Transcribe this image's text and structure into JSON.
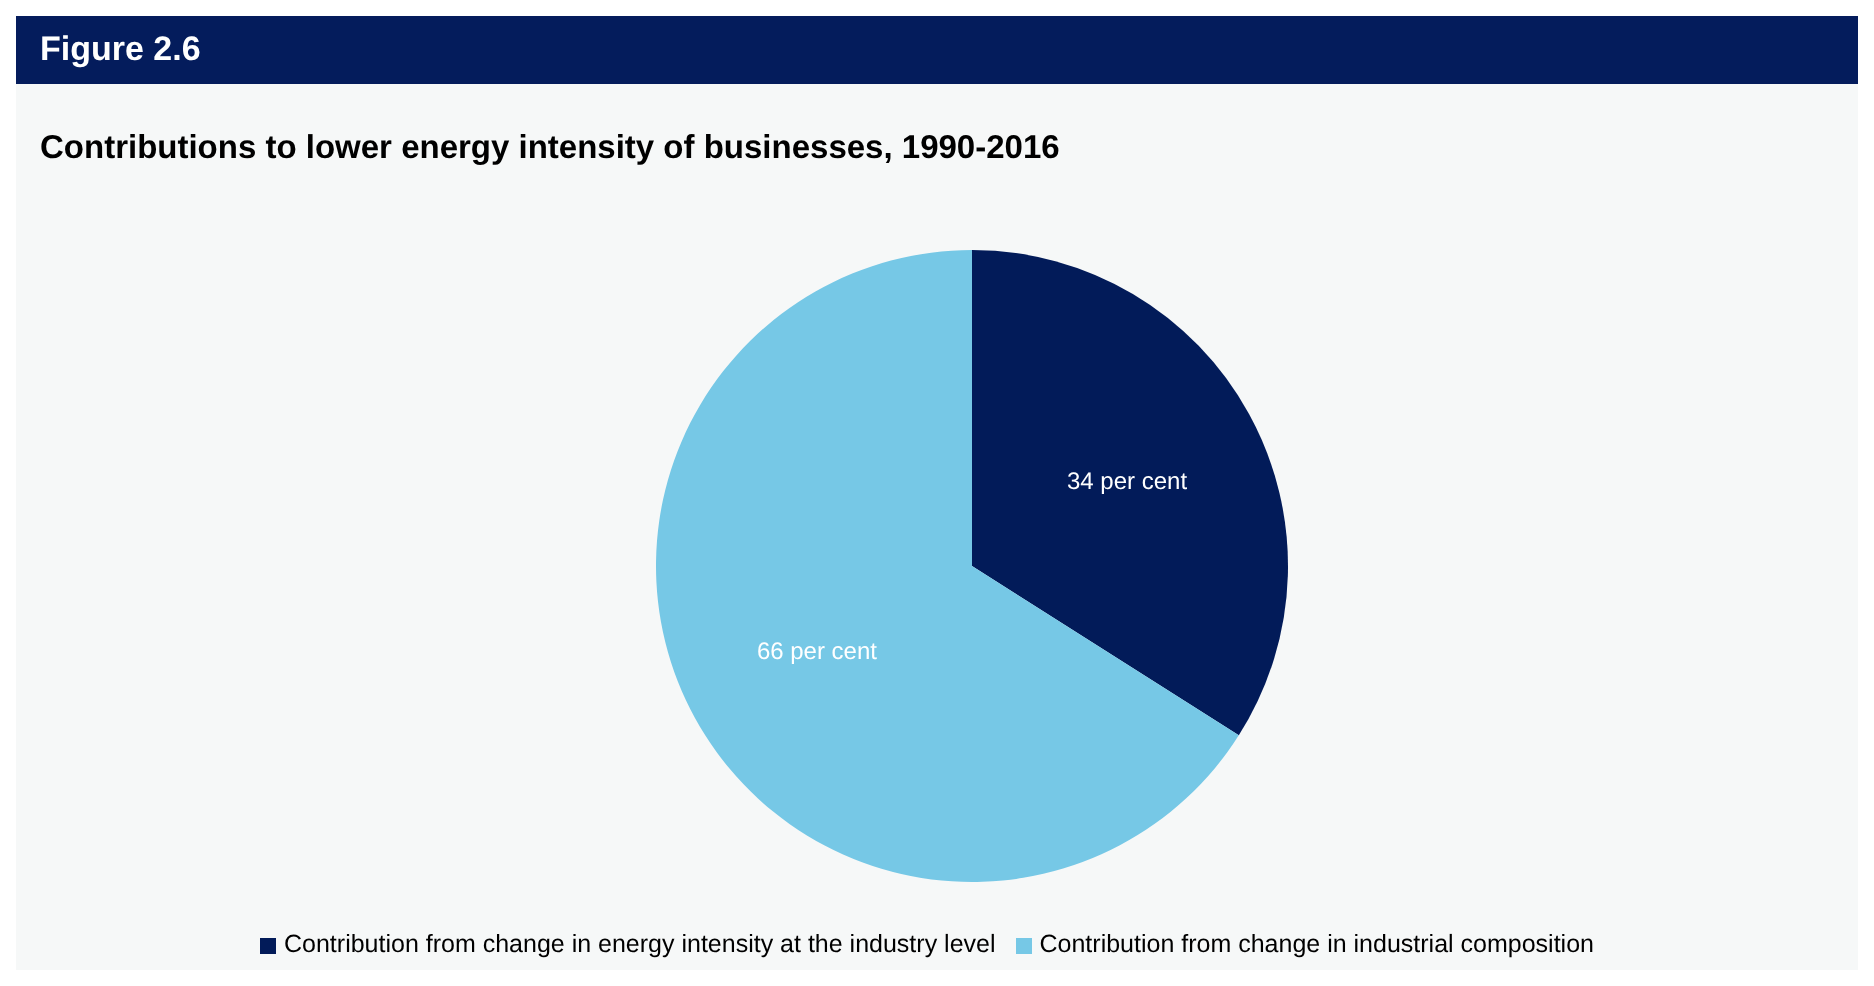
{
  "chart_data": {
    "type": "pie",
    "title": "Contributions to lower energy intensity of businesses, 1990-2016",
    "annotations": [
      "Figure 2.6"
    ],
    "categories": [
      "Contribution from change in energy intensity at the industry level",
      "Contribution from change in industrial composition"
    ],
    "values": [
      34,
      66
    ],
    "colors": [
      "#021b59",
      "#76c8e6"
    ],
    "value_labels": [
      "34 per cent",
      "66 per cent"
    ],
    "legend": "bottom"
  }
}
